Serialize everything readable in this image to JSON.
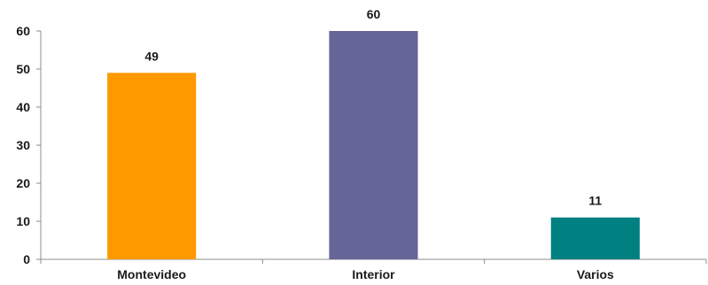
{
  "chart_data": {
    "type": "bar",
    "categories": [
      "Montevideo",
      "Interior",
      "Varios"
    ],
    "values": [
      49,
      60,
      11
    ],
    "data_labels": [
      "49",
      "60",
      "11"
    ],
    "colors": [
      "#ff9900",
      "#666699",
      "#008080"
    ],
    "ylim": [
      0,
      60
    ],
    "yticks": [
      0,
      10,
      20,
      30,
      40,
      50,
      60
    ],
    "ytick_labels": [
      "0",
      "10",
      "20",
      "30",
      "40",
      "50",
      "60"
    ],
    "grid": false,
    "legend": "none"
  }
}
